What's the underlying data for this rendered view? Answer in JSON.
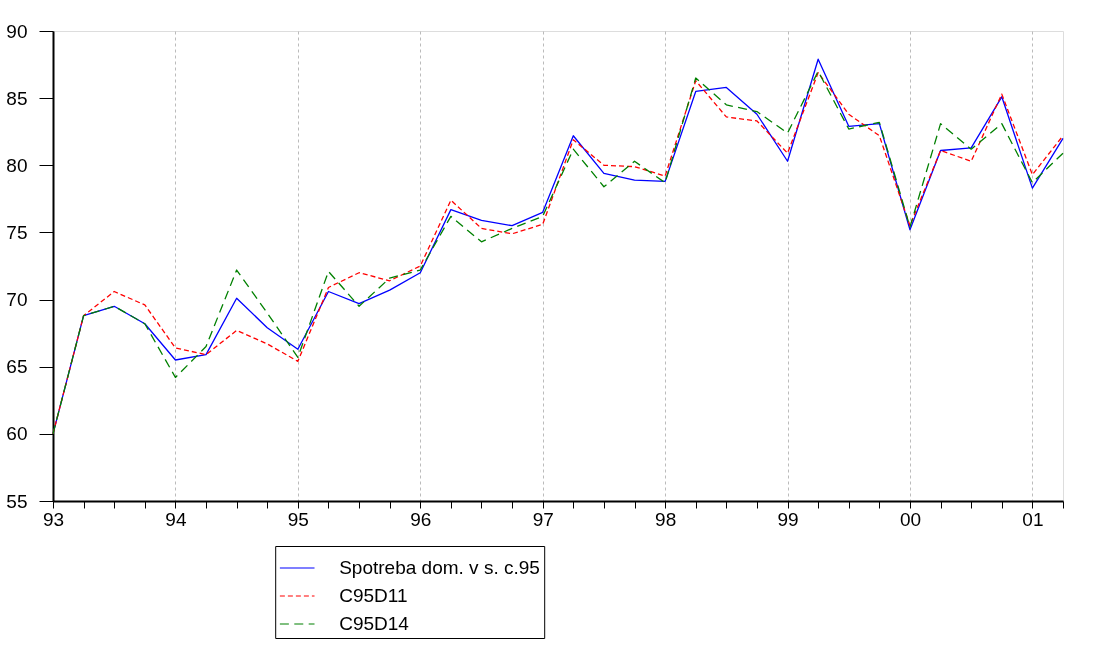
{
  "chart_data": {
    "type": "line",
    "x": [
      1993,
      1993.25,
      1993.5,
      1993.75,
      1994,
      1994.25,
      1994.5,
      1994.75,
      1995,
      1995.25,
      1995.5,
      1995.75,
      1996,
      1996.25,
      1996.5,
      1996.75,
      1997,
      1997.25,
      1997.5,
      1997.75,
      1998,
      1998.25,
      1998.5,
      1998.75,
      1999,
      1999.25,
      1999.5,
      1999.75,
      2000,
      2000.25,
      2000.5,
      2000.75,
      2001,
      2001.25
    ],
    "series": [
      {
        "name": "Spotreba dom. v s. c.95",
        "color": "#0000ff",
        "line_style": "solid",
        "values": [
          60.0,
          68.8,
          69.5,
          68.2,
          65.5,
          65.9,
          70.1,
          67.9,
          66.3,
          70.6,
          69.7,
          70.7,
          72.0,
          76.7,
          75.9,
          75.5,
          76.5,
          82.2,
          79.4,
          78.9,
          78.8,
          85.5,
          85.8,
          83.8,
          80.3,
          87.9,
          82.9,
          83.1,
          75.2,
          81.1,
          81.3,
          85.1,
          78.3,
          82.0
        ]
      },
      {
        "name": "C95D11",
        "color": "#ff0000",
        "line_style": "dashed",
        "values": [
          60.0,
          68.8,
          70.6,
          69.6,
          66.4,
          65.9,
          67.7,
          66.7,
          65.4,
          70.9,
          72.0,
          71.4,
          72.5,
          77.4,
          75.3,
          74.9,
          75.6,
          81.9,
          80.0,
          79.9,
          79.2,
          86.3,
          83.6,
          83.3,
          80.9,
          86.9,
          83.8,
          82.2,
          75.5,
          81.1,
          80.3,
          85.3,
          79.3,
          82.2
        ]
      },
      {
        "name": "C95D14",
        "color": "#008000",
        "line_style": "dashed",
        "values": [
          60.0,
          68.8,
          69.5,
          68.2,
          64.2,
          66.5,
          72.2,
          69.0,
          65.7,
          72.1,
          69.5,
          71.6,
          72.2,
          76.2,
          74.3,
          75.3,
          76.2,
          81.2,
          78.4,
          80.3,
          78.7,
          86.5,
          84.5,
          84.0,
          82.4,
          87.0,
          82.7,
          83.2,
          75.4,
          83.1,
          81.2,
          83.1,
          78.7,
          80.9
        ]
      }
    ],
    "xlim": [
      1993,
      2001.25
    ],
    "xticks": [
      {
        "value": 1993,
        "label": "93"
      },
      {
        "value": 1993.25,
        "label": null
      },
      {
        "value": 1993.5,
        "label": null
      },
      {
        "value": 1993.75,
        "label": null
      },
      {
        "value": 1994,
        "label": "94"
      },
      {
        "value": 1994.25,
        "label": null
      },
      {
        "value": 1994.5,
        "label": null
      },
      {
        "value": 1994.75,
        "label": null
      },
      {
        "value": 1995,
        "label": "95"
      },
      {
        "value": 1995.25,
        "label": null
      },
      {
        "value": 1995.5,
        "label": null
      },
      {
        "value": 1995.75,
        "label": null
      },
      {
        "value": 1996,
        "label": "96"
      },
      {
        "value": 1996.25,
        "label": null
      },
      {
        "value": 1996.5,
        "label": null
      },
      {
        "value": 1996.75,
        "label": null
      },
      {
        "value": 1997,
        "label": "97"
      },
      {
        "value": 1997.25,
        "label": null
      },
      {
        "value": 1997.5,
        "label": null
      },
      {
        "value": 1997.75,
        "label": null
      },
      {
        "value": 1998,
        "label": "98"
      },
      {
        "value": 1998.25,
        "label": null
      },
      {
        "value": 1998.5,
        "label": null
      },
      {
        "value": 1998.75,
        "label": null
      },
      {
        "value": 1999,
        "label": "99"
      },
      {
        "value": 1999.25,
        "label": null
      },
      {
        "value": 1999.5,
        "label": null
      },
      {
        "value": 1999.75,
        "label": null
      },
      {
        "value": 2000,
        "label": "00"
      },
      {
        "value": 2000.25,
        "label": null
      },
      {
        "value": 2000.5,
        "label": null
      },
      {
        "value": 2000.75,
        "label": null
      },
      {
        "value": 2001,
        "label": "01"
      },
      {
        "value": 2001.25,
        "label": null
      }
    ],
    "ylim": [
      55,
      90
    ],
    "yticks": [
      55,
      60,
      65,
      70,
      75,
      80,
      85,
      90
    ],
    "grid": "x",
    "legend": "bottom",
    "marker": "none"
  }
}
